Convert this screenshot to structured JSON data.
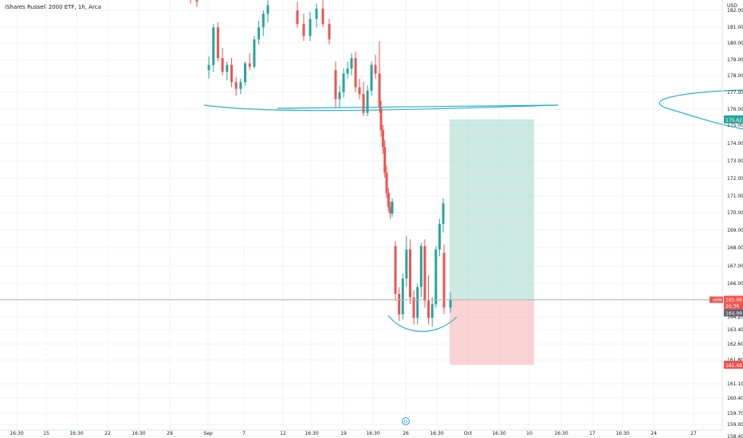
{
  "header": {
    "title": "iShares Russell 2000 ETF, 1h, Arca"
  },
  "chart_data": {
    "type": "candlestick",
    "currency": "USD",
    "x_ticks": [
      "16:30",
      "15",
      "16:30",
      "22",
      "16:30",
      "29",
      "Sep",
      "7",
      "12",
      "16:30",
      "19",
      "16:30",
      "26",
      "16:30",
      "Oct",
      "16:30",
      "10",
      "16:30",
      "17",
      "16:30",
      "24",
      "27"
    ],
    "y_ticks": [
      "182.00",
      "181.00",
      "180.00",
      "179.00",
      "178.00",
      "177.00",
      "176.00",
      "175.00",
      "174.00",
      "173.00",
      "172.00",
      "171.00",
      "170.00",
      "169.00",
      "168.00",
      "167.00",
      "166.00",
      "165.00",
      "164.20",
      "163.40",
      "162.60",
      "161.80",
      "161.10",
      "160.40",
      "159.70",
      "159.00",
      "158.40"
    ],
    "labels": {
      "horizontal_level": "175.62",
      "symbol": "IWM",
      "last_price": "165.06",
      "countdown": "26:36",
      "prev_close": "164.99",
      "stop_level": "161.49",
      "event_marker": "D"
    },
    "position": {
      "side": "long",
      "entry": 165.06,
      "target": 175.62,
      "stop": 161.49
    },
    "candles": [
      [
        182.8,
        183.0,
        182.4,
        182.6
      ],
      [
        182.6,
        182.9,
        182.2,
        182.5
      ],
      [
        178.5,
        179.3,
        178.0,
        178.8
      ],
      [
        178.8,
        181.2,
        178.4,
        181.0
      ],
      [
        181.0,
        181.3,
        179.0,
        179.2
      ],
      [
        179.2,
        179.8,
        178.2,
        178.4
      ],
      [
        178.4,
        179.0,
        177.9,
        178.8
      ],
      [
        178.8,
        179.2,
        177.5,
        177.8
      ],
      [
        177.8,
        178.1,
        177.0,
        177.4
      ],
      [
        177.4,
        178.0,
        177.1,
        177.8
      ],
      [
        177.8,
        179.0,
        177.6,
        178.9
      ],
      [
        178.9,
        179.5,
        178.5,
        178.7
      ],
      [
        178.7,
        180.5,
        178.6,
        180.3
      ],
      [
        180.3,
        181.4,
        180.0,
        181.0
      ],
      [
        181.0,
        182.0,
        180.5,
        181.8
      ],
      [
        181.8,
        182.6,
        181.3,
        182.3
      ],
      [
        182.0,
        182.5,
        181.0,
        181.2
      ],
      [
        181.2,
        181.8,
        180.2,
        180.5
      ],
      [
        180.5,
        181.9,
        180.2,
        181.5
      ],
      [
        181.5,
        182.4,
        181.0,
        182.1
      ],
      [
        182.1,
        182.6,
        181.0,
        181.2
      ],
      [
        181.2,
        181.5,
        180.0,
        180.3
      ],
      [
        178.5,
        179.0,
        176.3,
        176.8
      ],
      [
        176.8,
        177.6,
        176.3,
        177.2
      ],
      [
        177.2,
        178.6,
        176.9,
        178.3
      ],
      [
        178.3,
        179.0,
        178.0,
        178.6
      ],
      [
        178.6,
        179.5,
        178.2,
        179.2
      ],
      [
        179.2,
        179.6,
        177.2,
        177.5
      ],
      [
        177.5,
        178.0,
        176.8,
        177.1
      ],
      [
        177.1,
        177.8,
        175.8,
        176.0
      ],
      [
        176.0,
        177.6,
        175.8,
        177.3
      ],
      [
        177.3,
        179.0,
        177.0,
        178.8
      ],
      [
        178.8,
        179.4,
        178.0,
        178.3
      ],
      [
        178.3,
        180.2,
        176.0,
        176.3
      ],
      [
        176.3,
        176.7,
        174.6,
        175.0
      ],
      [
        175.0,
        175.3,
        173.6,
        174.0
      ],
      [
        174.0,
        174.4,
        172.2,
        172.5
      ],
      [
        172.5,
        172.9,
        171.0,
        171.3
      ],
      [
        171.3,
        171.6,
        170.2,
        170.5
      ],
      [
        170.5,
        170.8,
        169.8,
        170.1
      ],
      [
        170.1,
        171.0,
        169.9,
        170.8
      ],
      [
        168.2,
        168.5,
        165.0,
        165.4
      ],
      [
        165.4,
        165.8,
        163.8,
        164.2
      ],
      [
        164.2,
        166.6,
        163.9,
        166.3
      ],
      [
        166.3,
        168.8,
        165.8,
        168.0
      ],
      [
        168.0,
        168.6,
        164.8,
        165.2
      ],
      [
        165.2,
        165.6,
        163.6,
        164.0
      ],
      [
        164.0,
        166.0,
        163.6,
        165.8
      ],
      [
        165.8,
        168.4,
        165.2,
        168.2
      ],
      [
        168.2,
        168.6,
        164.6,
        165.0
      ],
      [
        165.0,
        166.5,
        163.6,
        164.0
      ],
      [
        164.0,
        165.2,
        163.5,
        164.8
      ],
      [
        164.8,
        168.2,
        164.6,
        168.0
      ],
      [
        168.0,
        169.8,
        167.6,
        169.5
      ],
      [
        169.5,
        171.0,
        169.0,
        170.7
      ],
      [
        167.8,
        168.3,
        164.2,
        164.6
      ],
      [
        164.6,
        165.5,
        164.3,
        165.06
      ]
    ]
  }
}
